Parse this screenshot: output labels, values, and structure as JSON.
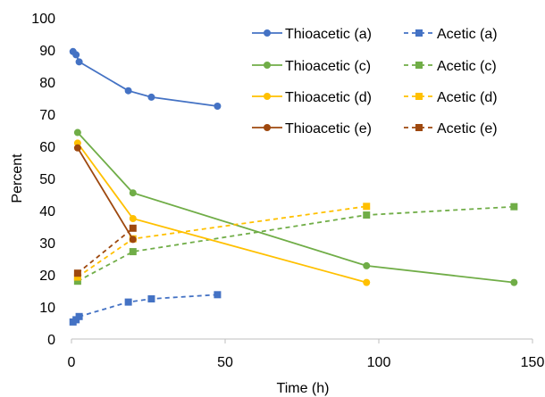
{
  "chart_data": {
    "type": "scatter",
    "title": "",
    "xlabel": "Time (h)",
    "ylabel": "Percent",
    "xlim": [
      0,
      150
    ],
    "ylim": [
      0,
      100
    ],
    "xticks": [
      0,
      50,
      100,
      150
    ],
    "yticks": [
      0,
      10,
      20,
      30,
      40,
      50,
      60,
      70,
      80,
      90,
      100
    ],
    "grid": false,
    "legend_position": "top-right",
    "series": [
      {
        "name": "Thioacetic (a)",
        "color": "#4472C4",
        "marker": "circle",
        "line": "solid",
        "x": [
          0.5,
          1.5,
          2.5,
          18.5,
          26,
          47.5
        ],
        "y": [
          89.5,
          88.5,
          86.3,
          77.3,
          75.3,
          72.5
        ]
      },
      {
        "name": "Acetic (a)",
        "color": "#4472C4",
        "marker": "square",
        "line": "dashed",
        "x": [
          0.5,
          1.5,
          2.5,
          18.5,
          26,
          47.5
        ],
        "y": [
          5.3,
          6.0,
          7.0,
          11.5,
          12.5,
          13.8
        ]
      },
      {
        "name": "Thioacetic (c)",
        "color": "#70AD47",
        "marker": "circle",
        "line": "solid",
        "x": [
          2,
          20,
          96,
          144
        ],
        "y": [
          64.3,
          45.5,
          22.8,
          17.6
        ]
      },
      {
        "name": "Acetic (c)",
        "color": "#70AD47",
        "marker": "square",
        "line": "dashed",
        "x": [
          2,
          20,
          96,
          144
        ],
        "y": [
          18.0,
          27.2,
          38.6,
          41.2
        ]
      },
      {
        "name": "Thioacetic (d)",
        "color": "#FFC000",
        "marker": "circle",
        "line": "solid",
        "x": [
          2,
          20,
          96
        ],
        "y": [
          61.0,
          37.5,
          17.6
        ]
      },
      {
        "name": "Acetic (d)",
        "color": "#FFC000",
        "marker": "square",
        "line": "dashed",
        "x": [
          2,
          20,
          96
        ],
        "y": [
          19.3,
          31.2,
          41.3
        ]
      },
      {
        "name": "Thioacetic (e)",
        "color": "#9E480E",
        "marker": "circle",
        "line": "solid",
        "x": [
          2,
          20
        ],
        "y": [
          59.5,
          31.0
        ]
      },
      {
        "name": "Acetic (e)",
        "color": "#9E480E",
        "marker": "square",
        "line": "dashed",
        "x": [
          2,
          20
        ],
        "y": [
          20.5,
          34.5
        ]
      }
    ]
  }
}
